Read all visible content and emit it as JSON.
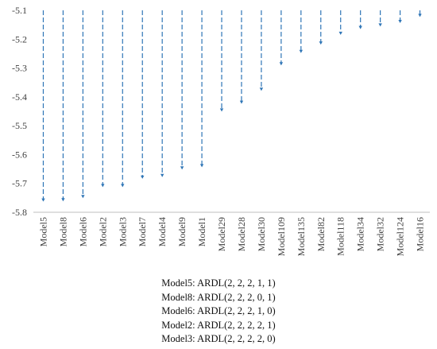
{
  "chart_data": {
    "type": "bar",
    "title": "",
    "xlabel": "",
    "ylabel": "",
    "ylim": [
      -5.8,
      -5.1
    ],
    "yticks": [
      "-5.1",
      "-5.2",
      "-5.3",
      "-5.4",
      "-5.5",
      "-5.6",
      "-5.7",
      "-5.8"
    ],
    "categories": [
      "Model5",
      "Model8",
      "Model6",
      "Model2",
      "Model3",
      "Model7",
      "Model4",
      "Model9",
      "Model1",
      "Model29",
      "Model28",
      "Model30",
      "Model109",
      "Model135",
      "Model82",
      "Model118",
      "Model34",
      "Model32",
      "Model124",
      "Model16"
    ],
    "values": [
      -5.763,
      -5.762,
      -5.751,
      -5.713,
      -5.713,
      -5.684,
      -5.678,
      -5.652,
      -5.644,
      -5.451,
      -5.424,
      -5.379,
      -5.291,
      -5.248,
      -5.219,
      -5.185,
      -5.165,
      -5.156,
      -5.144,
      -5.123
    ],
    "style": "dashed drop-lines with arrowheads",
    "grid": false,
    "colors": {
      "series": "#2e75b6",
      "axis": "#bfbfbf",
      "text": "#404040"
    }
  },
  "legend_lines": [
    "Model5: ARDL(2, 2, 2, 1, 1)",
    "Model8: ARDL(2, 2, 2, 0, 1)",
    "Model6: ARDL(2, 2, 2, 1, 0)",
    "Model2: ARDL(2, 2, 2, 2, 1)",
    "Model3: ARDL(2, 2, 2, 2, 0)"
  ]
}
